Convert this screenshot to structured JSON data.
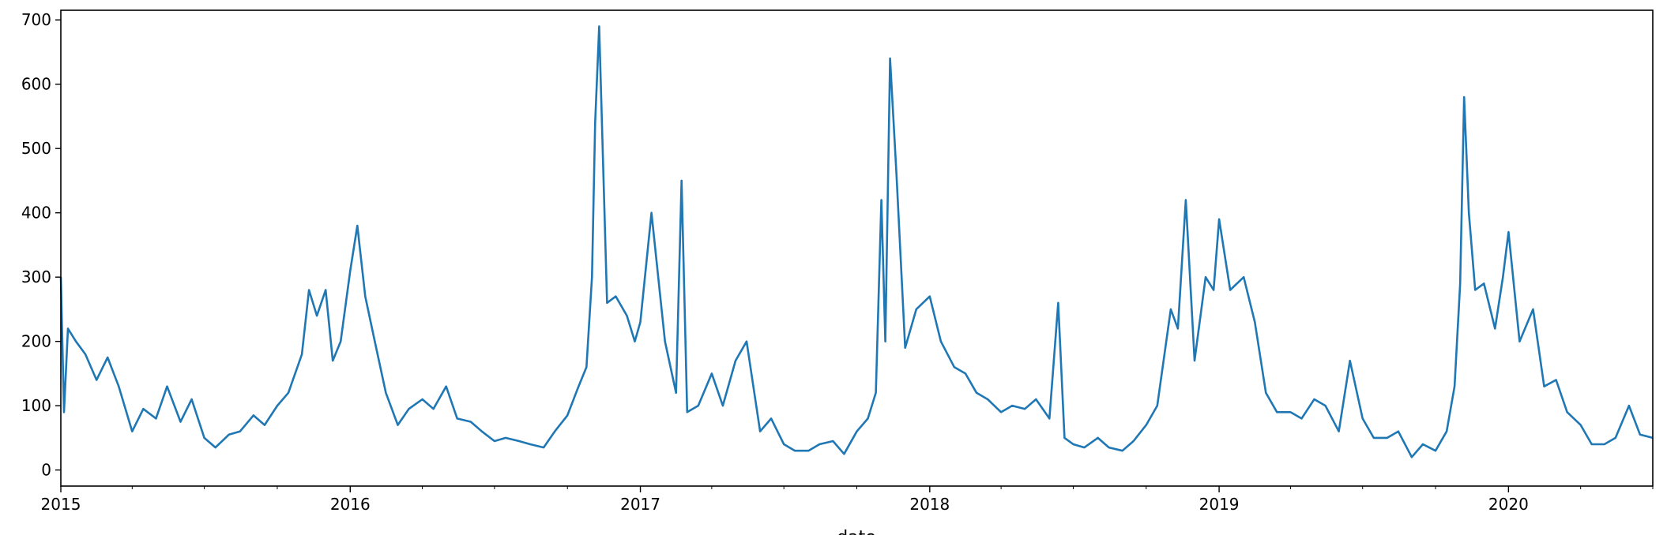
{
  "chart_data": {
    "type": "line",
    "title": "",
    "xlabel": "date",
    "ylabel": "",
    "xlim": [
      "2015-01-01",
      "2020-07-01"
    ],
    "ylim": [
      -25,
      715
    ],
    "grid": false,
    "legend": "none",
    "line_color": "#1f77b4",
    "x_tick_labels": [
      "2015",
      "2016",
      "2017",
      "2018",
      "2019",
      "2020"
    ],
    "y_tick_labels": [
      "0",
      "100",
      "200",
      "300",
      "400",
      "500",
      "600",
      "700"
    ],
    "series": [
      {
        "x": [
          "2015-01-01",
          "2015-01-05",
          "2015-01-10",
          "2015-01-20",
          "2015-02-01",
          "2015-02-15",
          "2015-03-01",
          "2015-03-15",
          "2015-04-01",
          "2015-04-15",
          "2015-05-01",
          "2015-05-15",
          "2015-06-01",
          "2015-06-15",
          "2015-07-01",
          "2015-07-15",
          "2015-08-01",
          "2015-08-15",
          "2015-09-01",
          "2015-09-15",
          "2015-10-01",
          "2015-10-15",
          "2015-11-01",
          "2015-11-10",
          "2015-11-20",
          "2015-12-01",
          "2015-12-10",
          "2015-12-20",
          "2016-01-01",
          "2016-01-10",
          "2016-01-20",
          "2016-02-01",
          "2016-02-15",
          "2016-03-01",
          "2016-03-15",
          "2016-04-01",
          "2016-04-15",
          "2016-05-01",
          "2016-05-15",
          "2016-06-01",
          "2016-06-15",
          "2016-07-01",
          "2016-07-15",
          "2016-08-01",
          "2016-08-15",
          "2016-09-01",
          "2016-09-15",
          "2016-10-01",
          "2016-10-15",
          "2016-10-25",
          "2016-11-01",
          "2016-11-05",
          "2016-11-10",
          "2016-11-20",
          "2016-12-01",
          "2016-12-15",
          "2016-12-25",
          "2017-01-01",
          "2017-01-15",
          "2017-02-01",
          "2017-02-15",
          "2017-02-22",
          "2017-03-01",
          "2017-03-15",
          "2017-04-01",
          "2017-04-15",
          "2017-05-01",
          "2017-05-15",
          "2017-06-01",
          "2017-06-15",
          "2017-07-01",
          "2017-07-15",
          "2017-08-01",
          "2017-08-15",
          "2017-09-01",
          "2017-09-15",
          "2017-10-01",
          "2017-10-15",
          "2017-10-25",
          "2017-11-01",
          "2017-11-06",
          "2017-11-12",
          "2017-11-20",
          "2017-12-01",
          "2017-12-15",
          "2018-01-01",
          "2018-01-15",
          "2018-02-01",
          "2018-02-15",
          "2018-03-01",
          "2018-03-15",
          "2018-04-01",
          "2018-04-15",
          "2018-05-01",
          "2018-05-15",
          "2018-06-01",
          "2018-06-12",
          "2018-06-20",
          "2018-07-01",
          "2018-07-15",
          "2018-08-01",
          "2018-08-15",
          "2018-09-01",
          "2018-09-15",
          "2018-10-01",
          "2018-10-15",
          "2018-11-01",
          "2018-11-10",
          "2018-11-20",
          "2018-12-01",
          "2018-12-15",
          "2018-12-25",
          "2019-01-01",
          "2019-01-15",
          "2019-02-01",
          "2019-02-15",
          "2019-03-01",
          "2019-03-15",
          "2019-04-01",
          "2019-04-15",
          "2019-05-01",
          "2019-05-15",
          "2019-06-01",
          "2019-06-15",
          "2019-07-01",
          "2019-07-15",
          "2019-08-01",
          "2019-08-15",
          "2019-09-01",
          "2019-09-15",
          "2019-10-01",
          "2019-10-15",
          "2019-10-25",
          "2019-11-01",
          "2019-11-06",
          "2019-11-12",
          "2019-11-20",
          "2019-12-01",
          "2019-12-15",
          "2019-12-25",
          "2020-01-01",
          "2020-01-15",
          "2020-02-01",
          "2020-02-15",
          "2020-03-01",
          "2020-03-15",
          "2020-04-01",
          "2020-04-15",
          "2020-05-01",
          "2020-05-15",
          "2020-06-01",
          "2020-06-15",
          "2020-07-01"
        ],
        "values": [
          300,
          90,
          220,
          200,
          180,
          140,
          175,
          130,
          60,
          95,
          80,
          130,
          75,
          110,
          50,
          35,
          55,
          60,
          85,
          70,
          100,
          120,
          180,
          280,
          240,
          280,
          170,
          200,
          310,
          380,
          270,
          200,
          120,
          70,
          95,
          110,
          95,
          130,
          80,
          75,
          60,
          45,
          50,
          45,
          40,
          35,
          60,
          85,
          130,
          160,
          300,
          540,
          690,
          260,
          270,
          240,
          200,
          230,
          400,
          200,
          120,
          450,
          90,
          100,
          150,
          100,
          170,
          200,
          60,
          80,
          40,
          30,
          30,
          40,
          45,
          25,
          60,
          80,
          120,
          420,
          200,
          640,
          460,
          190,
          250,
          270,
          200,
          160,
          150,
          120,
          110,
          90,
          100,
          95,
          110,
          80,
          260,
          50,
          40,
          35,
          50,
          35,
          30,
          45,
          70,
          100,
          250,
          220,
          420,
          170,
          300,
          280,
          390,
          280,
          300,
          230,
          120,
          90,
          90,
          80,
          110,
          100,
          60,
          170,
          80,
          50,
          50,
          60,
          20,
          40,
          30,
          60,
          130,
          290,
          580,
          400,
          280,
          290,
          220,
          300,
          370,
          200,
          250,
          130,
          140,
          90,
          70,
          40,
          40,
          50,
          100,
          55,
          50
        ]
      }
    ]
  }
}
